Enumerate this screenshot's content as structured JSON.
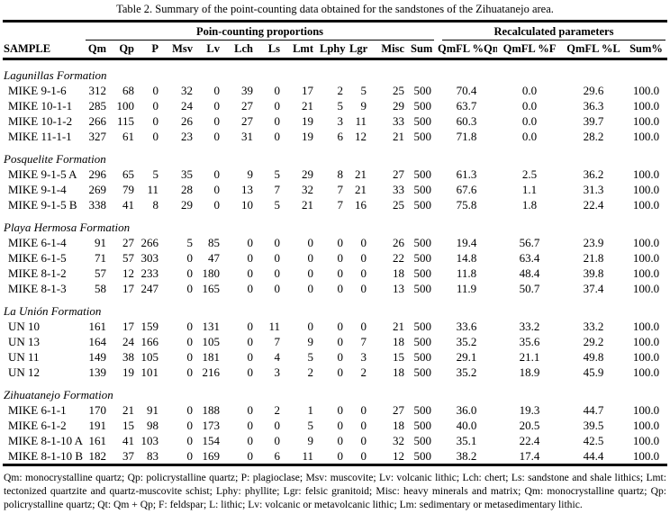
{
  "caption": "Table 2. Summary of the point-counting data obtained for the sandstones of the Zihuatanejo area.",
  "table": {
    "group_headers": {
      "point_counting": "Poin-counting proportions",
      "recalculated": "Recalculated parameters"
    },
    "columns": [
      "SAMPLE",
      "Qm",
      "Qp",
      "P",
      "Msv",
      "Lv",
      "Lch",
      "Ls",
      "Lmt",
      "Lphy",
      "Lgr",
      "Misc",
      "Sum",
      "QmFL %Qm",
      "QmFL %F",
      "QmFL %L",
      "Sum%"
    ],
    "sections": [
      {
        "formation": "Lagunillas Formation",
        "rows": [
          [
            "MIKE 9-1-6",
            "312",
            "68",
            "0",
            "32",
            "0",
            "39",
            "0",
            "17",
            "2",
            "5",
            "25",
            "500",
            "70.4",
            "0.0",
            "29.6",
            "100.0"
          ],
          [
            "MIKE 10-1-1",
            "285",
            "100",
            "0",
            "24",
            "0",
            "27",
            "0",
            "21",
            "5",
            "9",
            "29",
            "500",
            "63.7",
            "0.0",
            "36.3",
            "100.0"
          ],
          [
            "MIKE 10-1-2",
            "266",
            "115",
            "0",
            "26",
            "0",
            "27",
            "0",
            "19",
            "3",
            "11",
            "33",
            "500",
            "60.3",
            "0.0",
            "39.7",
            "100.0"
          ],
          [
            "MIKE 11-1-1",
            "327",
            "61",
            "0",
            "23",
            "0",
            "31",
            "0",
            "19",
            "6",
            "12",
            "21",
            "500",
            "71.8",
            "0.0",
            "28.2",
            "100.0"
          ]
        ]
      },
      {
        "formation": "Posquelite Formation",
        "rows": [
          [
            "MIKE 9-1-5 A",
            "296",
            "65",
            "5",
            "35",
            "0",
            "9",
            "5",
            "29",
            "8",
            "21",
            "27",
            "500",
            "61.3",
            "2.5",
            "36.2",
            "100.0"
          ],
          [
            "MIKE 9-1-4",
            "269",
            "79",
            "11",
            "28",
            "0",
            "13",
            "7",
            "32",
            "7",
            "21",
            "33",
            "500",
            "67.6",
            "1.1",
            "31.3",
            "100.0"
          ],
          [
            "MIKE 9-1-5 B",
            "338",
            "41",
            "8",
            "29",
            "0",
            "10",
            "5",
            "21",
            "7",
            "16",
            "25",
            "500",
            "75.8",
            "1.8",
            "22.4",
            "100.0"
          ]
        ]
      },
      {
        "formation": "Playa Hermosa Formation",
        "rows": [
          [
            "MIKE 6-1-4",
            "91",
            "27",
            "266",
            "5",
            "85",
            "0",
            "0",
            "0",
            "0",
            "0",
            "26",
            "500",
            "19.4",
            "56.7",
            "23.9",
            "100.0"
          ],
          [
            "MIKE 6-1-5",
            "71",
            "57",
            "303",
            "0",
            "47",
            "0",
            "0",
            "0",
            "0",
            "0",
            "22",
            "500",
            "14.8",
            "63.4",
            "21.8",
            "100.0"
          ],
          [
            "MIKE 8-1-2",
            "57",
            "12",
            "233",
            "0",
            "180",
            "0",
            "0",
            "0",
            "0",
            "0",
            "18",
            "500",
            "11.8",
            "48.4",
            "39.8",
            "100.0"
          ],
          [
            "MIKE 8-1-3",
            "58",
            "17",
            "247",
            "0",
            "165",
            "0",
            "0",
            "0",
            "0",
            "0",
            "13",
            "500",
            "11.9",
            "50.7",
            "37.4",
            "100.0"
          ]
        ]
      },
      {
        "formation": "La Unión Formation",
        "rows": [
          [
            "UN 10",
            "161",
            "17",
            "159",
            "0",
            "131",
            "0",
            "11",
            "0",
            "0",
            "0",
            "21",
            "500",
            "33.6",
            "33.2",
            "33.2",
            "100.0"
          ],
          [
            "UN 13",
            "164",
            "24",
            "166",
            "0",
            "105",
            "0",
            "7",
            "9",
            "0",
            "7",
            "18",
            "500",
            "35.2",
            "35.6",
            "29.2",
            "100.0"
          ],
          [
            "UN 11",
            "149",
            "38",
            "105",
            "0",
            "181",
            "0",
            "4",
            "5",
            "0",
            "3",
            "15",
            "500",
            "29.1",
            "21.1",
            "49.8",
            "100.0"
          ],
          [
            "UN 12",
            "139",
            "19",
            "101",
            "0",
            "216",
            "0",
            "3",
            "2",
            "0",
            "2",
            "18",
            "500",
            "35.2",
            "18.9",
            "45.9",
            "100.0"
          ]
        ]
      },
      {
        "formation": "Zihuatanejo Formation",
        "rows": [
          [
            "MIKE 6-1-1",
            "170",
            "21",
            "91",
            "0",
            "188",
            "0",
            "2",
            "1",
            "0",
            "0",
            "27",
            "500",
            "36.0",
            "19.3",
            "44.7",
            "100.0"
          ],
          [
            "MIKE 6-1-2",
            "191",
            "15",
            "98",
            "0",
            "173",
            "0",
            "0",
            "5",
            "0",
            "0",
            "18",
            "500",
            "40.0",
            "20.5",
            "39.5",
            "100.0"
          ],
          [
            "MIKE 8-1-10 A",
            "161",
            "41",
            "103",
            "0",
            "154",
            "0",
            "0",
            "9",
            "0",
            "0",
            "32",
            "500",
            "35.1",
            "22.4",
            "42.5",
            "100.0"
          ],
          [
            "MIKE 8-1-10 B",
            "182",
            "37",
            "83",
            "0",
            "169",
            "0",
            "6",
            "11",
            "0",
            "0",
            "12",
            "500",
            "38.2",
            "17.4",
            "44.4",
            "100.0"
          ]
        ]
      }
    ]
  },
  "footnote": "Qm: monocrystalline quartz; Qp: policrystalline quartz; P: plagioclase; Msv: muscovite; Lv: volcanic lithic; Lch: chert; Ls: sandstone and shale lithics; Lmt: tectonized quartzite and quartz-muscovite schist; Lphy: phyllite; Lgr: felsic granitoid; Misc: heavy minerals and matrix; Qm: monocrystalline quartz; Qp: policrystalline quartz; Qt: Qm + Qp; F: feldspar; L: lithic; Lv: volcanic or metavolcanic lithic; Lm: sedimentary or metasedimentary lithic."
}
